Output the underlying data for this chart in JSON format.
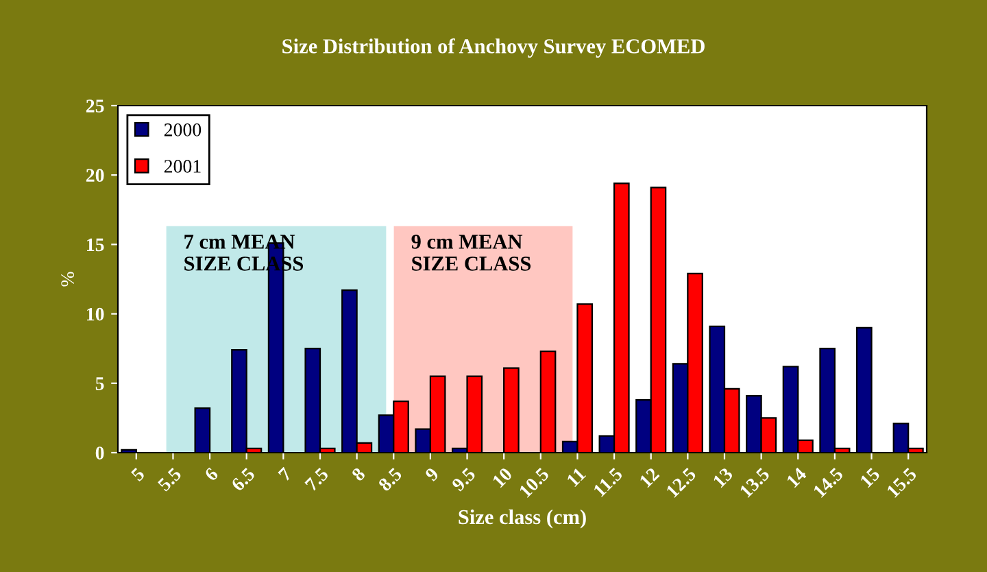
{
  "chart_data": {
    "type": "bar",
    "title": "Size Distribution of Anchovy Survey ECOMED",
    "xlabel": "Size class (cm)",
    "ylabel": "%",
    "categories": [
      "5",
      "5.5",
      "6",
      "6.5",
      "7",
      "7.5",
      "8",
      "8.5",
      "9",
      "9.5",
      "10",
      "10.5",
      "11",
      "11.5",
      "12",
      "12.5",
      "13",
      "13.5",
      "14",
      "14.5",
      "15",
      "15.5"
    ],
    "series": [
      {
        "name": "2000",
        "color": "#000080",
        "values": [
          0.2,
          null,
          3.2,
          7.4,
          15.1,
          7.5,
          11.7,
          2.7,
          1.7,
          0.3,
          null,
          null,
          0.8,
          1.2,
          3.8,
          6.4,
          9.1,
          4.1,
          6.2,
          7.5,
          9.0,
          2.1
        ]
      },
      {
        "name": "2001",
        "color": "#ff0000",
        "values": [
          null,
          null,
          null,
          0.3,
          null,
          0.3,
          0.7,
          3.7,
          5.5,
          5.5,
          6.1,
          7.3,
          10.7,
          19.4,
          19.1,
          12.9,
          4.6,
          2.5,
          0.9,
          0.3,
          null,
          0.3
        ]
      }
    ],
    "ylim": [
      0,
      25
    ],
    "yticks": [
      0,
      5,
      10,
      15,
      20,
      25
    ],
    "legend": "top left",
    "annotations": [
      "7 cm MEAN\nSIZE CLASS",
      "9 cm MEAN\nSIZE CLASS"
    ]
  }
}
